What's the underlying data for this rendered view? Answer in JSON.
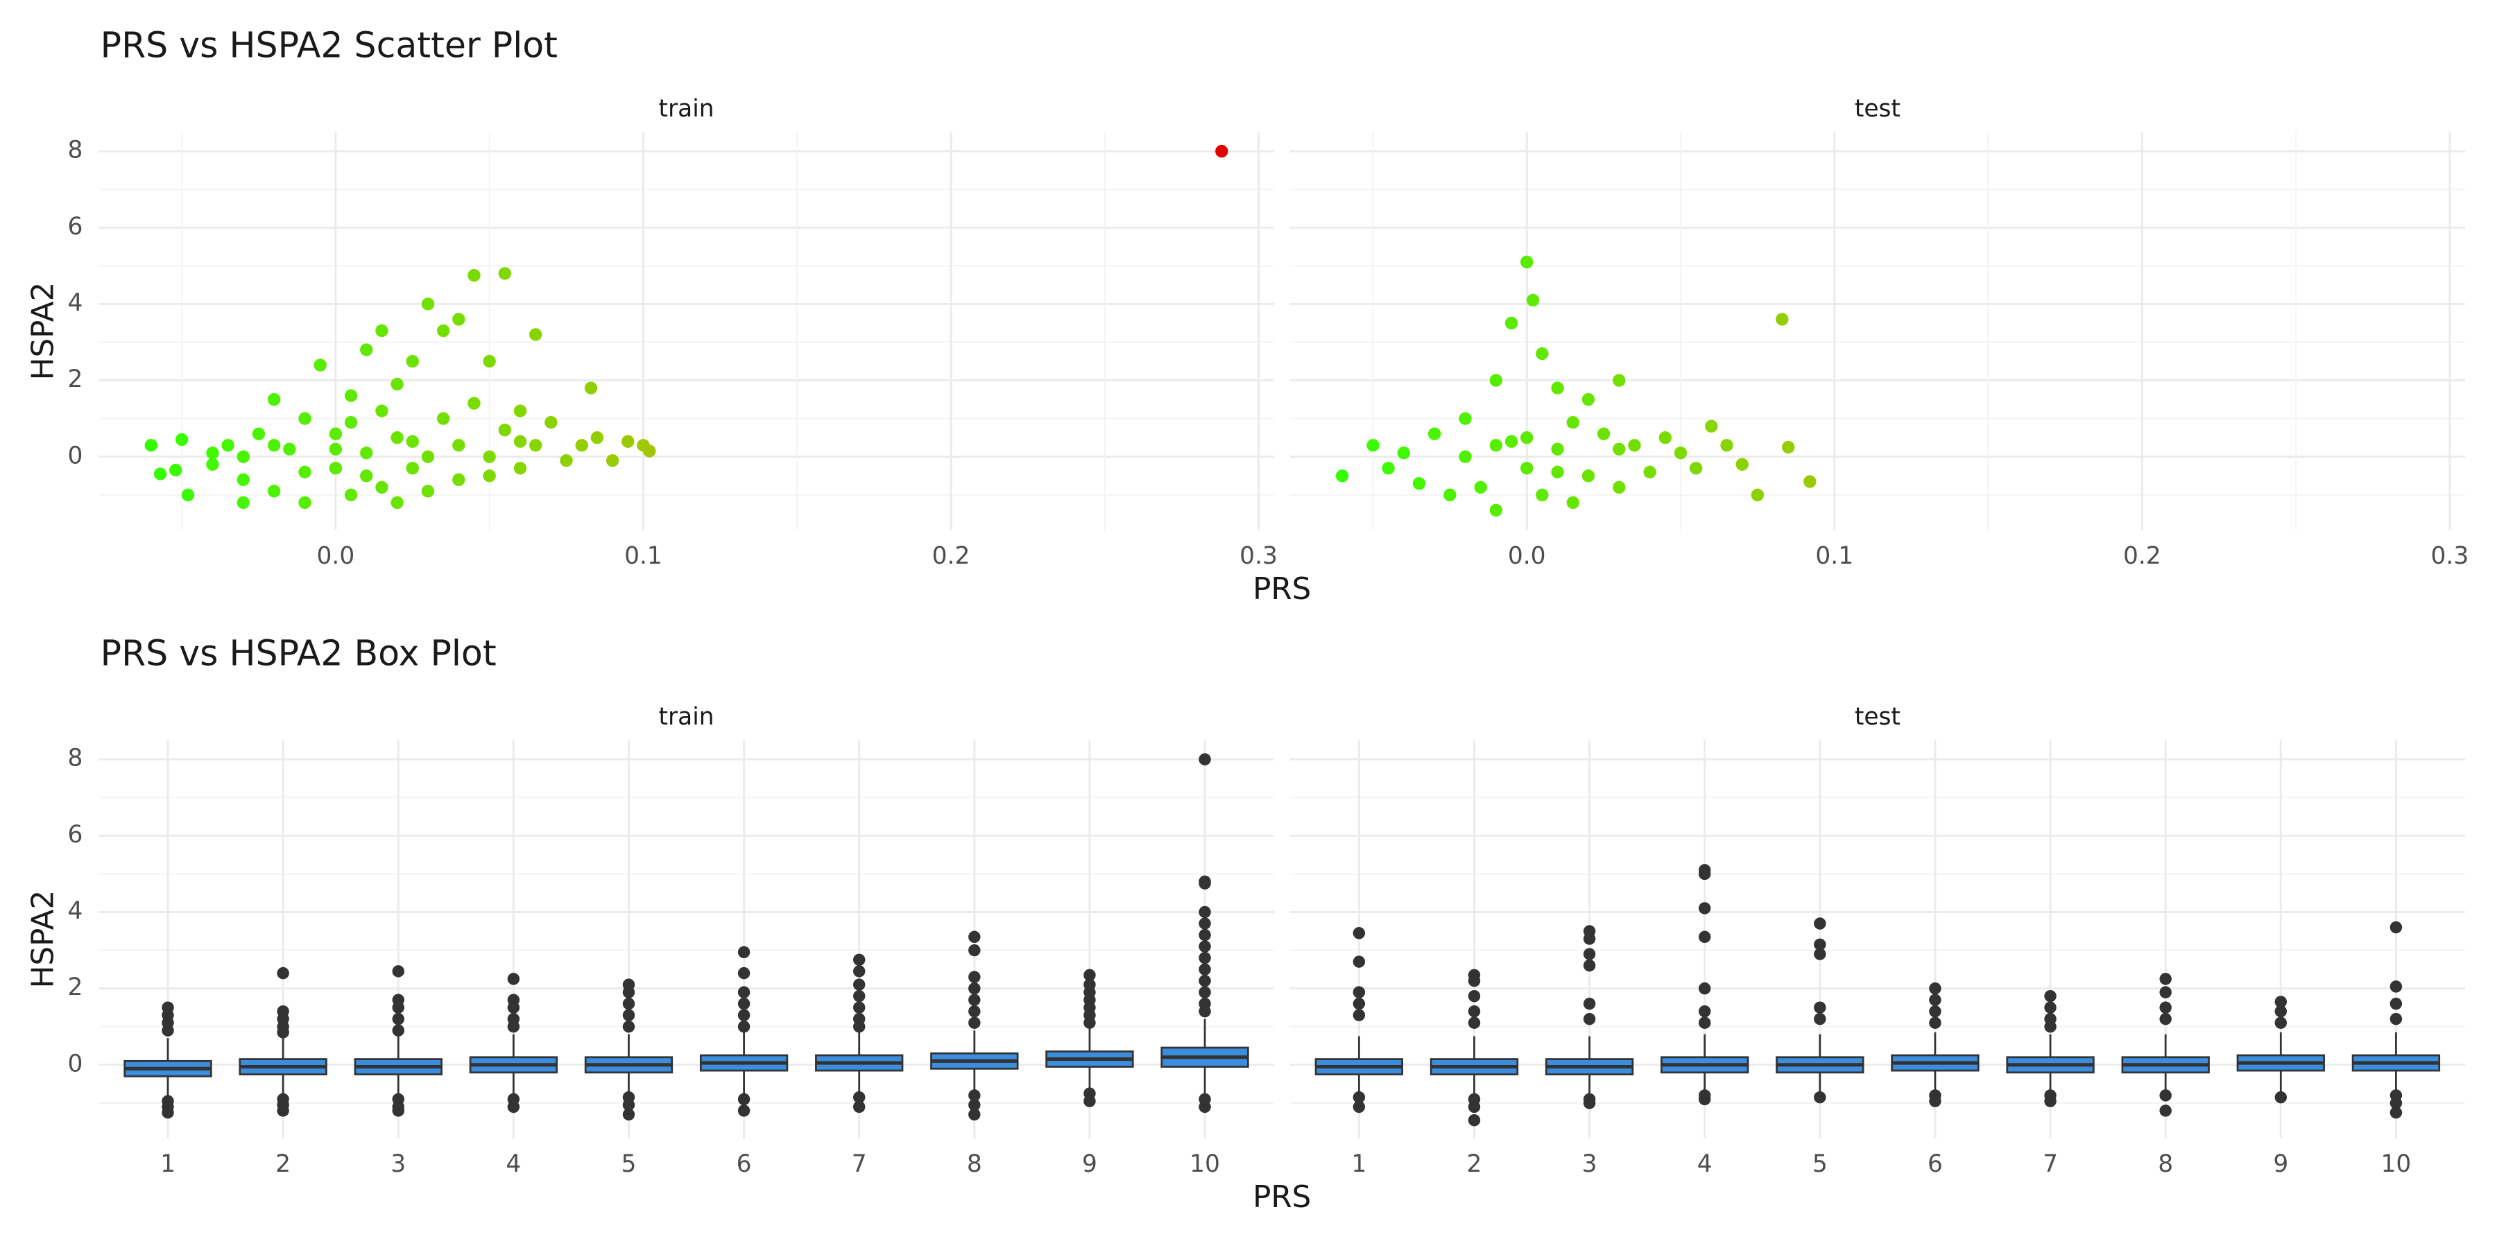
{
  "chart_data": [
    {
      "type": "scatter",
      "title": "PRS vs HSPA2 Scatter Plot",
      "x_label": "PRS",
      "y_label": "HSPA2",
      "color_stops": [
        "#33ff00",
        "#a8c400",
        "#e00000"
      ],
      "xlim": [
        -0.077,
        0.305
      ],
      "xticks": [
        {
          "value": 0,
          "label": "0.0"
        },
        0.1,
        0.2,
        0.3
      ],
      "minor_xticks": [
        -0.05,
        0.05,
        0.15,
        0.25
      ],
      "ylim": [
        -1.92,
        8.5
      ],
      "yticks": [
        0,
        2,
        4,
        6,
        8
      ],
      "minor_yticks": [
        -1,
        1,
        3,
        5,
        7
      ],
      "grid": true,
      "panels": [
        {
          "name": "train",
          "x": [
            -0.06,
            -0.057,
            -0.052,
            -0.05,
            -0.048,
            -0.04,
            -0.035,
            -0.03,
            -0.03,
            -0.025,
            -0.02,
            -0.02,
            -0.015,
            -0.01,
            -0.01,
            -0.005,
            0.0,
            0.0,
            0.005,
            0.005,
            0.01,
            0.01,
            0.015,
            0.015,
            0.02,
            0.02,
            0.025,
            0.025,
            0.03,
            0.03,
            0.035,
            0.035,
            0.04,
            0.04,
            0.045,
            0.045,
            0.05,
            0.05,
            0.055,
            0.055,
            0.06,
            0.06,
            0.065,
            0.065,
            0.07,
            0.075,
            0.08,
            0.083,
            0.085,
            0.09,
            0.095,
            0.1,
            0.102,
            0.288,
            -0.03,
            -0.02,
            -0.01,
            0.0,
            0.01,
            0.02,
            0.03,
            0.04,
            0.05,
            0.06,
            -0.04,
            0.015,
            0.025,
            0.005
          ],
          "y": [
            0.3,
            -0.45,
            -0.35,
            0.45,
            -1.0,
            -0.2,
            0.3,
            -0.6,
            -1.2,
            0.6,
            1.5,
            -0.9,
            0.2,
            1.0,
            -1.2,
            2.4,
            -0.3,
            0.6,
            1.6,
            -1.0,
            2.8,
            0.1,
            3.3,
            -0.8,
            1.9,
            -1.2,
            2.5,
            0.4,
            4.0,
            -0.9,
            3.3,
            1.0,
            3.6,
            -0.6,
            4.75,
            1.4,
            2.5,
            -0.5,
            4.8,
            0.7,
            1.2,
            -0.3,
            3.2,
            0.3,
            0.9,
            -0.1,
            0.3,
            1.8,
            0.5,
            -0.1,
            0.4,
            0.3,
            0.15,
            8.0,
            0.0,
            0.3,
            -0.4,
            0.2,
            -0.5,
            0.5,
            0.0,
            0.3,
            0.0,
            0.4,
            0.1,
            1.2,
            -0.3,
            0.9
          ]
        },
        {
          "name": "test",
          "x": [
            -0.06,
            -0.05,
            -0.045,
            -0.04,
            -0.035,
            -0.03,
            -0.025,
            -0.02,
            -0.015,
            -0.01,
            -0.01,
            -0.005,
            -0.005,
            0.0,
            0.0,
            0.002,
            0.005,
            0.005,
            0.01,
            0.01,
            0.015,
            0.015,
            0.02,
            0.02,
            0.025,
            0.03,
            0.03,
            0.035,
            0.04,
            0.045,
            0.05,
            0.055,
            0.06,
            0.065,
            0.07,
            0.075,
            0.083,
            0.085,
            0.092,
            -0.02,
            0.0,
            0.01,
            -0.01,
            0.03
          ],
          "y": [
            -0.5,
            0.3,
            -0.3,
            0.1,
            -0.7,
            0.6,
            -1.0,
            1.0,
            -0.8,
            2.0,
            -1.4,
            3.5,
            0.4,
            5.1,
            -0.3,
            4.1,
            2.7,
            -1.0,
            1.8,
            0.2,
            0.9,
            -1.2,
            1.5,
            -0.5,
            0.6,
            2.0,
            -0.8,
            0.3,
            -0.4,
            0.5,
            0.1,
            -0.3,
            0.8,
            0.3,
            -0.2,
            -1.0,
            3.6,
            0.25,
            -0.65,
            0.0,
            0.5,
            -0.4,
            0.3,
            0.2
          ]
        }
      ]
    },
    {
      "type": "box",
      "title": "PRS vs HSPA2 Box Plot",
      "x_label": "PRS",
      "y_label": "HSPA2",
      "color": "#3b8ede",
      "categories": [
        "1",
        "2",
        "3",
        "4",
        "5",
        "6",
        "7",
        "8",
        "9",
        "10"
      ],
      "ylim": [
        -1.92,
        8.5
      ],
      "yticks": [
        0,
        2,
        4,
        6,
        8
      ],
      "minor_yticks": [
        -1,
        1,
        3,
        5,
        7
      ],
      "grid": true,
      "panels": [
        {
          "name": "train",
          "q1": [
            -0.3,
            -0.25,
            -0.25,
            -0.2,
            -0.2,
            -0.15,
            -0.15,
            -0.1,
            -0.05,
            -0.05
          ],
          "median": [
            -0.1,
            -0.05,
            -0.05,
            0,
            0,
            0.05,
            0.05,
            0.1,
            0.15,
            0.2
          ],
          "q3": [
            0.1,
            0.15,
            0.15,
            0.2,
            0.2,
            0.25,
            0.25,
            0.3,
            0.35,
            0.45
          ],
          "whisker_low": [
            -0.85,
            -0.8,
            -0.8,
            -0.8,
            -0.8,
            -0.75,
            -0.75,
            -0.7,
            -0.65,
            -0.8
          ],
          "whisker_high": [
            0.7,
            0.75,
            0.75,
            0.8,
            0.8,
            0.85,
            0.85,
            0.9,
            0.95,
            1.2
          ],
          "outliers": [
            [
              1.5,
              1.3,
              1.1,
              0.9,
              -0.95,
              -1.1,
              -1.25
            ],
            [
              2.4,
              1.4,
              1.2,
              1.0,
              0.85,
              -0.9,
              -1.05,
              -1.2
            ],
            [
              2.45,
              1.7,
              1.5,
              1.2,
              0.9,
              -0.9,
              -1.1,
              -1.2
            ],
            [
              2.25,
              1.7,
              1.5,
              1.2,
              1.0,
              -0.9,
              -1.1
            ],
            [
              2.1,
              1.9,
              1.6,
              1.3,
              1.0,
              -0.85,
              -1.05,
              -1.3
            ],
            [
              2.95,
              2.4,
              1.9,
              1.6,
              1.3,
              1.0,
              -0.9,
              -1.2
            ],
            [
              2.75,
              2.45,
              2.1,
              1.8,
              1.5,
              1.2,
              1.0,
              -0.85,
              -1.1
            ],
            [
              3.35,
              3.0,
              2.3,
              2.0,
              1.7,
              1.4,
              1.1,
              -0.8,
              -1.05,
              -1.3
            ],
            [
              2.35,
              2.1,
              1.9,
              1.7,
              1.5,
              1.3,
              1.1,
              -0.75,
              -0.95
            ],
            [
              8.0,
              4.8,
              4.75,
              4.0,
              3.7,
              3.4,
              3.1,
              2.8,
              2.5,
              2.2,
              1.9,
              1.6,
              1.4,
              -0.9,
              -1.1
            ]
          ]
        },
        {
          "name": "test",
          "q1": [
            -0.25,
            -0.25,
            -0.25,
            -0.2,
            -0.2,
            -0.15,
            -0.2,
            -0.2,
            -0.15,
            -0.15
          ],
          "median": [
            -0.05,
            -0.05,
            -0.05,
            0,
            0,
            0.05,
            0,
            0,
            0.05,
            0.05
          ],
          "q3": [
            0.15,
            0.15,
            0.15,
            0.2,
            0.2,
            0.25,
            0.2,
            0.2,
            0.25,
            0.25
          ],
          "whisker_low": [
            -0.8,
            -0.8,
            -0.8,
            -0.75,
            -0.75,
            -0.7,
            -0.75,
            -0.75,
            -0.7,
            -0.75
          ],
          "whisker_high": [
            0.75,
            0.75,
            0.75,
            0.8,
            0.8,
            0.85,
            0.8,
            0.8,
            0.85,
            0.85
          ],
          "outliers": [
            [
              3.45,
              2.7,
              1.9,
              1.6,
              1.3,
              -0.85,
              -1.1
            ],
            [
              2.35,
              2.2,
              1.8,
              1.4,
              1.1,
              -0.9,
              -1.1,
              -1.45
            ],
            [
              3.5,
              3.3,
              2.9,
              2.6,
              1.6,
              1.2,
              -0.9,
              -1.0
            ],
            [
              5.1,
              5.0,
              4.1,
              3.35,
              2.0,
              1.4,
              1.1,
              -0.8,
              -0.9
            ],
            [
              3.7,
              3.15,
              2.9,
              1.5,
              1.2,
              -0.85
            ],
            [
              2.0,
              1.7,
              1.4,
              1.1,
              -0.8,
              -0.95
            ],
            [
              1.8,
              1.5,
              1.2,
              1.0,
              -0.8,
              -0.95
            ],
            [
              2.25,
              1.9,
              1.5,
              1.2,
              -0.8,
              -1.2
            ],
            [
              1.65,
              1.4,
              1.1,
              -0.85
            ],
            [
              3.6,
              2.05,
              1.6,
              1.2,
              -0.8,
              -1.0,
              -1.25
            ]
          ]
        }
      ]
    }
  ]
}
